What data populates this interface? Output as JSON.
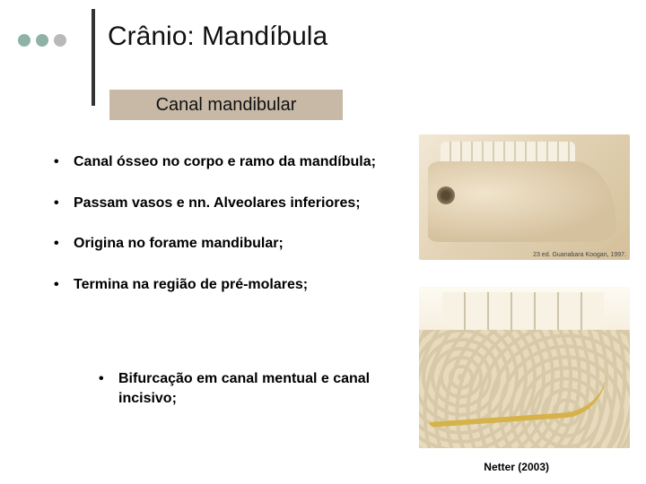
{
  "decor": {
    "dots": [
      {
        "color": "#8fb2a6"
      },
      {
        "color": "#8fb2a6"
      },
      {
        "color": "#b9b9b9"
      }
    ],
    "vline_color": "#333333"
  },
  "title": "Crânio: Mandíbula",
  "subtitle": "Canal mandibular",
  "subtitle_bg": "#c7b9a6",
  "bullets": [
    "Canal ósseo no corpo e ramo da mandíbula;",
    "Passam vasos e nn. Alveolares inferiores;",
    "Origina no forame mandibular;",
    "Termina na região de pré-molares;"
  ],
  "sub_bullets": [
    "Bifurcação em canal mentual e canal incisivo;"
  ],
  "image_top": {
    "caption": "23 ed. Guanabara Koogan, 1997.",
    "alt": "mandible-lateral-view"
  },
  "image_bottom": {
    "alt": "mandible-canal-cross-section"
  },
  "citation": "Netter (2003)"
}
